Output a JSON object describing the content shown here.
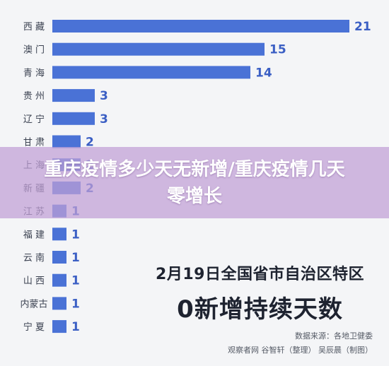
{
  "chart_data": {
    "type": "bar",
    "orientation": "horizontal",
    "categories": [
      "西 藏",
      "澳 门",
      "青 海",
      "贵 州",
      "辽 宁",
      "甘 肃",
      "上 海",
      "新 疆",
      "江 苏",
      "福 建",
      "云 南",
      "山 西",
      "内蒙古",
      "宁 夏"
    ],
    "values": [
      21,
      15,
      14,
      3,
      3,
      2,
      2,
      2,
      1,
      1,
      1,
      1,
      1,
      1
    ],
    "xlim": [
      0,
      21
    ],
    "grid": false,
    "legend": "none",
    "bar_color": "#4a72d6",
    "value_label_color": "#3b5fc4"
  },
  "banner": {
    "title": "重庆疫情多少天无新增/重庆疫情几天零增长",
    "color": "#c0a0d6"
  },
  "info": {
    "heading": "2月19日全国省市自治区特区",
    "big": "0新增持续天数",
    "source": "数据来源：各地卫健委",
    "credit": "观察者网 谷智轩（整理） 吴辰晨（制图）"
  }
}
